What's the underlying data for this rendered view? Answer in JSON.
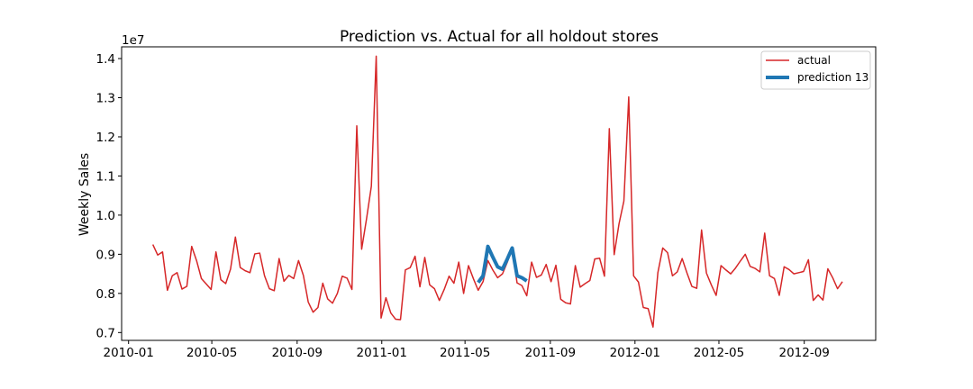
{
  "chart_data": {
    "type": "line",
    "title": "Prediction vs. Actual for all holdout stores",
    "xlabel": "",
    "ylabel": "Weekly Sales",
    "y_offset_label": "1e7",
    "y_scale_factor": 10000000,
    "xlim": [
      "2009-12-22",
      "2012-12-13"
    ],
    "ylim": [
      0.68,
      1.43
    ],
    "x_ticks": [
      "2010-01",
      "2010-05",
      "2010-09",
      "2011-01",
      "2011-05",
      "2011-09",
      "2012-01",
      "2012-05",
      "2012-09"
    ],
    "x_tick_labels": [
      "2010-01",
      "2010-05",
      "2010-09",
      "2011-01",
      "2011-05",
      "2011-09",
      "2012-01",
      "2012-05",
      "2012-09"
    ],
    "y_ticks": [
      0.7,
      0.8,
      0.9,
      1.0,
      1.1,
      1.2,
      1.3,
      1.4
    ],
    "y_tick_labels": [
      "0.7",
      "0.8",
      "0.9",
      "1.0",
      "1.1",
      "1.2",
      "1.3",
      "1.4"
    ],
    "grid": false,
    "legend_position": "top-right",
    "series": [
      {
        "name": "actual",
        "color": "#d62728",
        "x": [
          "2010-02-05",
          "2010-02-12",
          "2010-02-19",
          "2010-02-26",
          "2010-03-05",
          "2010-03-12",
          "2010-03-19",
          "2010-03-26",
          "2010-04-02",
          "2010-04-09",
          "2010-04-16",
          "2010-04-23",
          "2010-04-30",
          "2010-05-07",
          "2010-05-14",
          "2010-05-21",
          "2010-05-28",
          "2010-06-04",
          "2010-06-11",
          "2010-06-18",
          "2010-06-25",
          "2010-07-02",
          "2010-07-09",
          "2010-07-16",
          "2010-07-23",
          "2010-07-30",
          "2010-08-06",
          "2010-08-13",
          "2010-08-20",
          "2010-08-27",
          "2010-09-03",
          "2010-09-10",
          "2010-09-17",
          "2010-09-24",
          "2010-10-01",
          "2010-10-08",
          "2010-10-15",
          "2010-10-22",
          "2010-10-29",
          "2010-11-05",
          "2010-11-12",
          "2010-11-19",
          "2010-11-26",
          "2010-12-03",
          "2010-12-10",
          "2010-12-17",
          "2010-12-24",
          "2010-12-31",
          "2011-01-07",
          "2011-01-14",
          "2011-01-21",
          "2011-01-28",
          "2011-02-04",
          "2011-02-11",
          "2011-02-18",
          "2011-02-25",
          "2011-03-04",
          "2011-03-11",
          "2011-03-18",
          "2011-03-25",
          "2011-04-01",
          "2011-04-08",
          "2011-04-15",
          "2011-04-22",
          "2011-04-29",
          "2011-05-06",
          "2011-05-13",
          "2011-05-20",
          "2011-05-27",
          "2011-06-03",
          "2011-06-10",
          "2011-06-17",
          "2011-06-24",
          "2011-07-01",
          "2011-07-08",
          "2011-07-15",
          "2011-07-22",
          "2011-07-29",
          "2011-08-05",
          "2011-08-12",
          "2011-08-19",
          "2011-08-26",
          "2011-09-02",
          "2011-09-09",
          "2011-09-16",
          "2011-09-23",
          "2011-09-30",
          "2011-10-07",
          "2011-10-14",
          "2011-10-21",
          "2011-10-28",
          "2011-11-04",
          "2011-11-11",
          "2011-11-18",
          "2011-11-25",
          "2011-12-02",
          "2011-12-09",
          "2011-12-16",
          "2011-12-23",
          "2011-12-30",
          "2012-01-06",
          "2012-01-13",
          "2012-01-20",
          "2012-01-27",
          "2012-02-03",
          "2012-02-10",
          "2012-02-17",
          "2012-02-24",
          "2012-03-02",
          "2012-03-09",
          "2012-03-16",
          "2012-03-23",
          "2012-03-30",
          "2012-04-06",
          "2012-04-13",
          "2012-04-20",
          "2012-04-27",
          "2012-05-04",
          "2012-05-11",
          "2012-05-18",
          "2012-05-25",
          "2012-06-01",
          "2012-06-08",
          "2012-06-15",
          "2012-06-22",
          "2012-06-29",
          "2012-07-06",
          "2012-07-13",
          "2012-07-20",
          "2012-07-27",
          "2012-08-03",
          "2012-08-10",
          "2012-08-17",
          "2012-08-24",
          "2012-08-31",
          "2012-09-07",
          "2012-09-14",
          "2012-09-21",
          "2012-09-28",
          "2012-10-05",
          "2012-10-12",
          "2012-10-19",
          "2012-10-26"
        ],
        "values": [
          0.925,
          0.898,
          0.906,
          0.808,
          0.845,
          0.853,
          0.811,
          0.818,
          0.92,
          0.884,
          0.838,
          0.824,
          0.81,
          0.906,
          0.835,
          0.825,
          0.862,
          0.944,
          0.866,
          0.858,
          0.853,
          0.901,
          0.903,
          0.845,
          0.812,
          0.807,
          0.889,
          0.831,
          0.846,
          0.838,
          0.884,
          0.846,
          0.778,
          0.752,
          0.764,
          0.826,
          0.786,
          0.775,
          0.8,
          0.844,
          0.839,
          0.81,
          1.228,
          0.913,
          0.99,
          1.074,
          1.406,
          0.737,
          0.789,
          0.75,
          0.734,
          0.733,
          0.86,
          0.866,
          0.895,
          0.817,
          0.892,
          0.822,
          0.812,
          0.782,
          0.81,
          0.844,
          0.826,
          0.88,
          0.8,
          0.871,
          0.838,
          0.808,
          0.83,
          0.884,
          0.86,
          0.84,
          0.85,
          0.88,
          0.916,
          0.827,
          0.82,
          0.794,
          0.88,
          0.841,
          0.847,
          0.874,
          0.83,
          0.872,
          0.785,
          0.776,
          0.773,
          0.871,
          0.816,
          0.825,
          0.833,
          0.888,
          0.89,
          0.844,
          1.221,
          0.899,
          0.978,
          1.036,
          1.302,
          0.845,
          0.829,
          0.764,
          0.761,
          0.714,
          0.853,
          0.916,
          0.904,
          0.845,
          0.855,
          0.889,
          0.852,
          0.818,
          0.813,
          0.962,
          0.852,
          0.822,
          0.795,
          0.871,
          0.86,
          0.85,
          0.865,
          0.883,
          0.9,
          0.869,
          0.864,
          0.855,
          0.954,
          0.845,
          0.838,
          0.795,
          0.868,
          0.861,
          0.85,
          0.853,
          0.856,
          0.886,
          0.782,
          0.796,
          0.783,
          0.863,
          0.84,
          0.812,
          0.83
        ]
      },
      {
        "name": "prediction 13",
        "color": "#1f77b4",
        "x": [
          "2011-05-20",
          "2011-05-27",
          "2011-06-03",
          "2011-06-10",
          "2011-06-17",
          "2011-06-24",
          "2011-07-01",
          "2011-07-08",
          "2011-07-15",
          "2011-07-22",
          "2011-07-29"
        ],
        "values": [
          0.828,
          0.845,
          0.92,
          0.893,
          0.868,
          0.862,
          0.888,
          0.916,
          0.845,
          0.84,
          0.832
        ]
      }
    ]
  }
}
